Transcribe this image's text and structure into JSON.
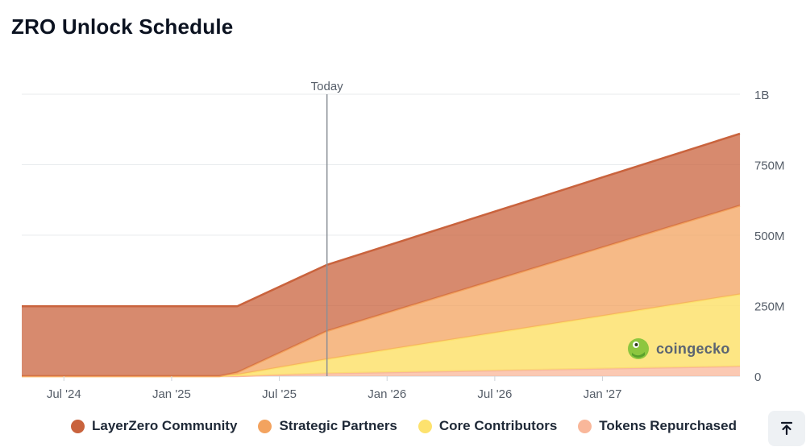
{
  "title": "ZRO Unlock Schedule",
  "chart_data": {
    "type": "area",
    "stacked": true,
    "title": "ZRO Unlock Schedule",
    "x_labels": [
      "Jul '24",
      "Jan '25",
      "Jul '25",
      "Jan '26",
      "Jul '26",
      "Jan '27"
    ],
    "x_domain": [
      "2024-06",
      "2027-10"
    ],
    "x": [
      0,
      11,
      12,
      17,
      40
    ],
    "y_ticks": [
      "0",
      "250M",
      "500M",
      "750M",
      "1B"
    ],
    "ylim": [
      0,
      1000000000
    ],
    "today_label": "Today",
    "today_x": 17,
    "series": [
      {
        "name": "Tokens Repurchased",
        "color": "#f9b79a",
        "values": [
          0,
          0,
          0,
          10000000,
          35000000
        ]
      },
      {
        "name": "Core Contributors",
        "color": "#fde26e",
        "values": [
          0,
          0,
          5000000,
          50000000,
          255000000
        ]
      },
      {
        "name": "Strategic Partners",
        "color": "#f3a35f",
        "values": [
          0,
          0,
          8000000,
          100000000,
          315000000
        ]
      },
      {
        "name": "LayerZero Community",
        "color": "#c9633d",
        "values": [
          248000000,
          248000000,
          235000000,
          235000000,
          255000000
        ]
      }
    ]
  },
  "legend": [
    {
      "name": "LayerZero Community",
      "color": "#c9633d"
    },
    {
      "name": "Strategic Partners",
      "color": "#f3a35f"
    },
    {
      "name": "Core Contributors",
      "color": "#fde26e"
    },
    {
      "name": "Tokens Repurchased",
      "color": "#f9b79a"
    }
  ],
  "watermark": "coingecko",
  "scroll_top_icon": "arrow-up-to-line-icon"
}
